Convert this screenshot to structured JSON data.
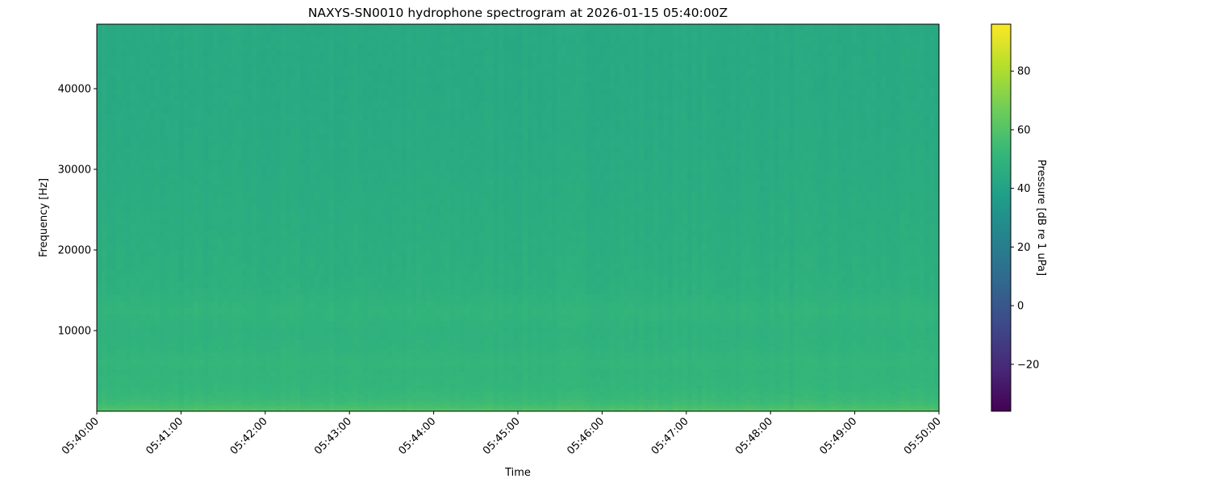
{
  "chart_data": {
    "type": "heatmap",
    "title": "NAXYS-SN0010 hydrophone spectrogram at 2026-01-15 05:40:00Z",
    "xlabel": "Time",
    "ylabel": "Frequency [Hz]",
    "xlim": [
      "05:40:00",
      "05:50:00"
    ],
    "x_ticks": [
      "05:40:00",
      "05:41:00",
      "05:42:00",
      "05:43:00",
      "05:44:00",
      "05:45:00",
      "05:46:00",
      "05:47:00",
      "05:48:00",
      "05:49:00",
      "05:50:00"
    ],
    "ylim": [
      0,
      48000
    ],
    "y_ticks": [
      10000,
      20000,
      30000,
      40000
    ],
    "y_tick_labels": [
      "10000",
      "20000",
      "30000",
      "40000"
    ],
    "colorbar": {
      "label": "Pressure [dB re 1 uPa]",
      "range": [
        -36,
        96
      ],
      "ticks": [
        -20,
        0,
        20,
        40,
        60,
        80
      ],
      "tick_labels": [
        "−20",
        "0",
        "20",
        "40",
        "60",
        "80"
      ],
      "colormap": "viridis"
    },
    "spectral_profile": {
      "frequency_hz": [
        0,
        300,
        800,
        1500,
        3000,
        5000,
        6000,
        8000,
        10000,
        12500,
        15000,
        20000,
        30000,
        40000,
        48000
      ],
      "level_db": [
        62,
        58,
        55,
        53,
        51,
        50,
        51,
        49,
        48.5,
        50,
        47.5,
        46.5,
        45,
        44,
        44
      ]
    },
    "grid": false
  }
}
